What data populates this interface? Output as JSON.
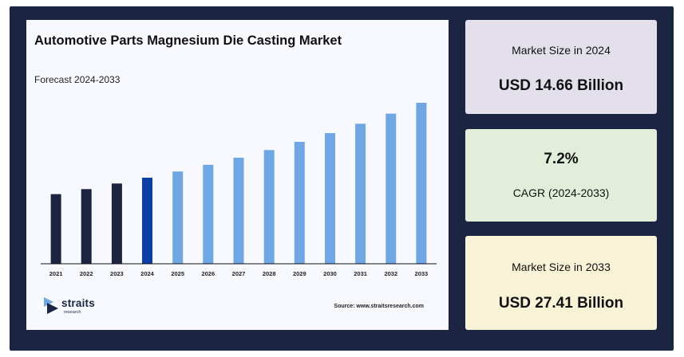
{
  "chart_data": {
    "type": "bar",
    "title": "Automotive Parts Magnesium Die Casting Market",
    "subtitle": "Forecast 2024-2033",
    "categories": [
      "2021",
      "2022",
      "2023",
      "2024",
      "2025",
      "2026",
      "2027",
      "2028",
      "2029",
      "2030",
      "2031",
      "2032",
      "2033"
    ],
    "values": [
      11.86,
      12.72,
      13.67,
      14.66,
      15.72,
      16.85,
      18.06,
      19.36,
      20.76,
      22.25,
      23.85,
      25.57,
      27.41
    ],
    "ylim": [
      0,
      28.5
    ],
    "grid": false,
    "legend": "none",
    "colors": {
      "historical": "#1b2440",
      "base_year": "#0b3fa8",
      "forecast": "#6fa6e4"
    },
    "bar_roles": [
      "historical",
      "historical",
      "historical",
      "base_year",
      "forecast",
      "forecast",
      "forecast",
      "forecast",
      "forecast",
      "forecast",
      "forecast",
      "forecast",
      "forecast"
    ]
  },
  "brand": {
    "logo_text": "straits",
    "logo_subtext": "research",
    "source": "Source: www.straitsresearch.com"
  },
  "stats": {
    "size_2024": {
      "label": "Market Size in 2024",
      "value": "USD 14.66 Billion"
    },
    "cagr": {
      "value": "7.2%",
      "label": "CAGR (2024-2033)"
    },
    "size_2033": {
      "label": "Market Size in 2033",
      "value": "USD 27.41 Billion"
    }
  }
}
